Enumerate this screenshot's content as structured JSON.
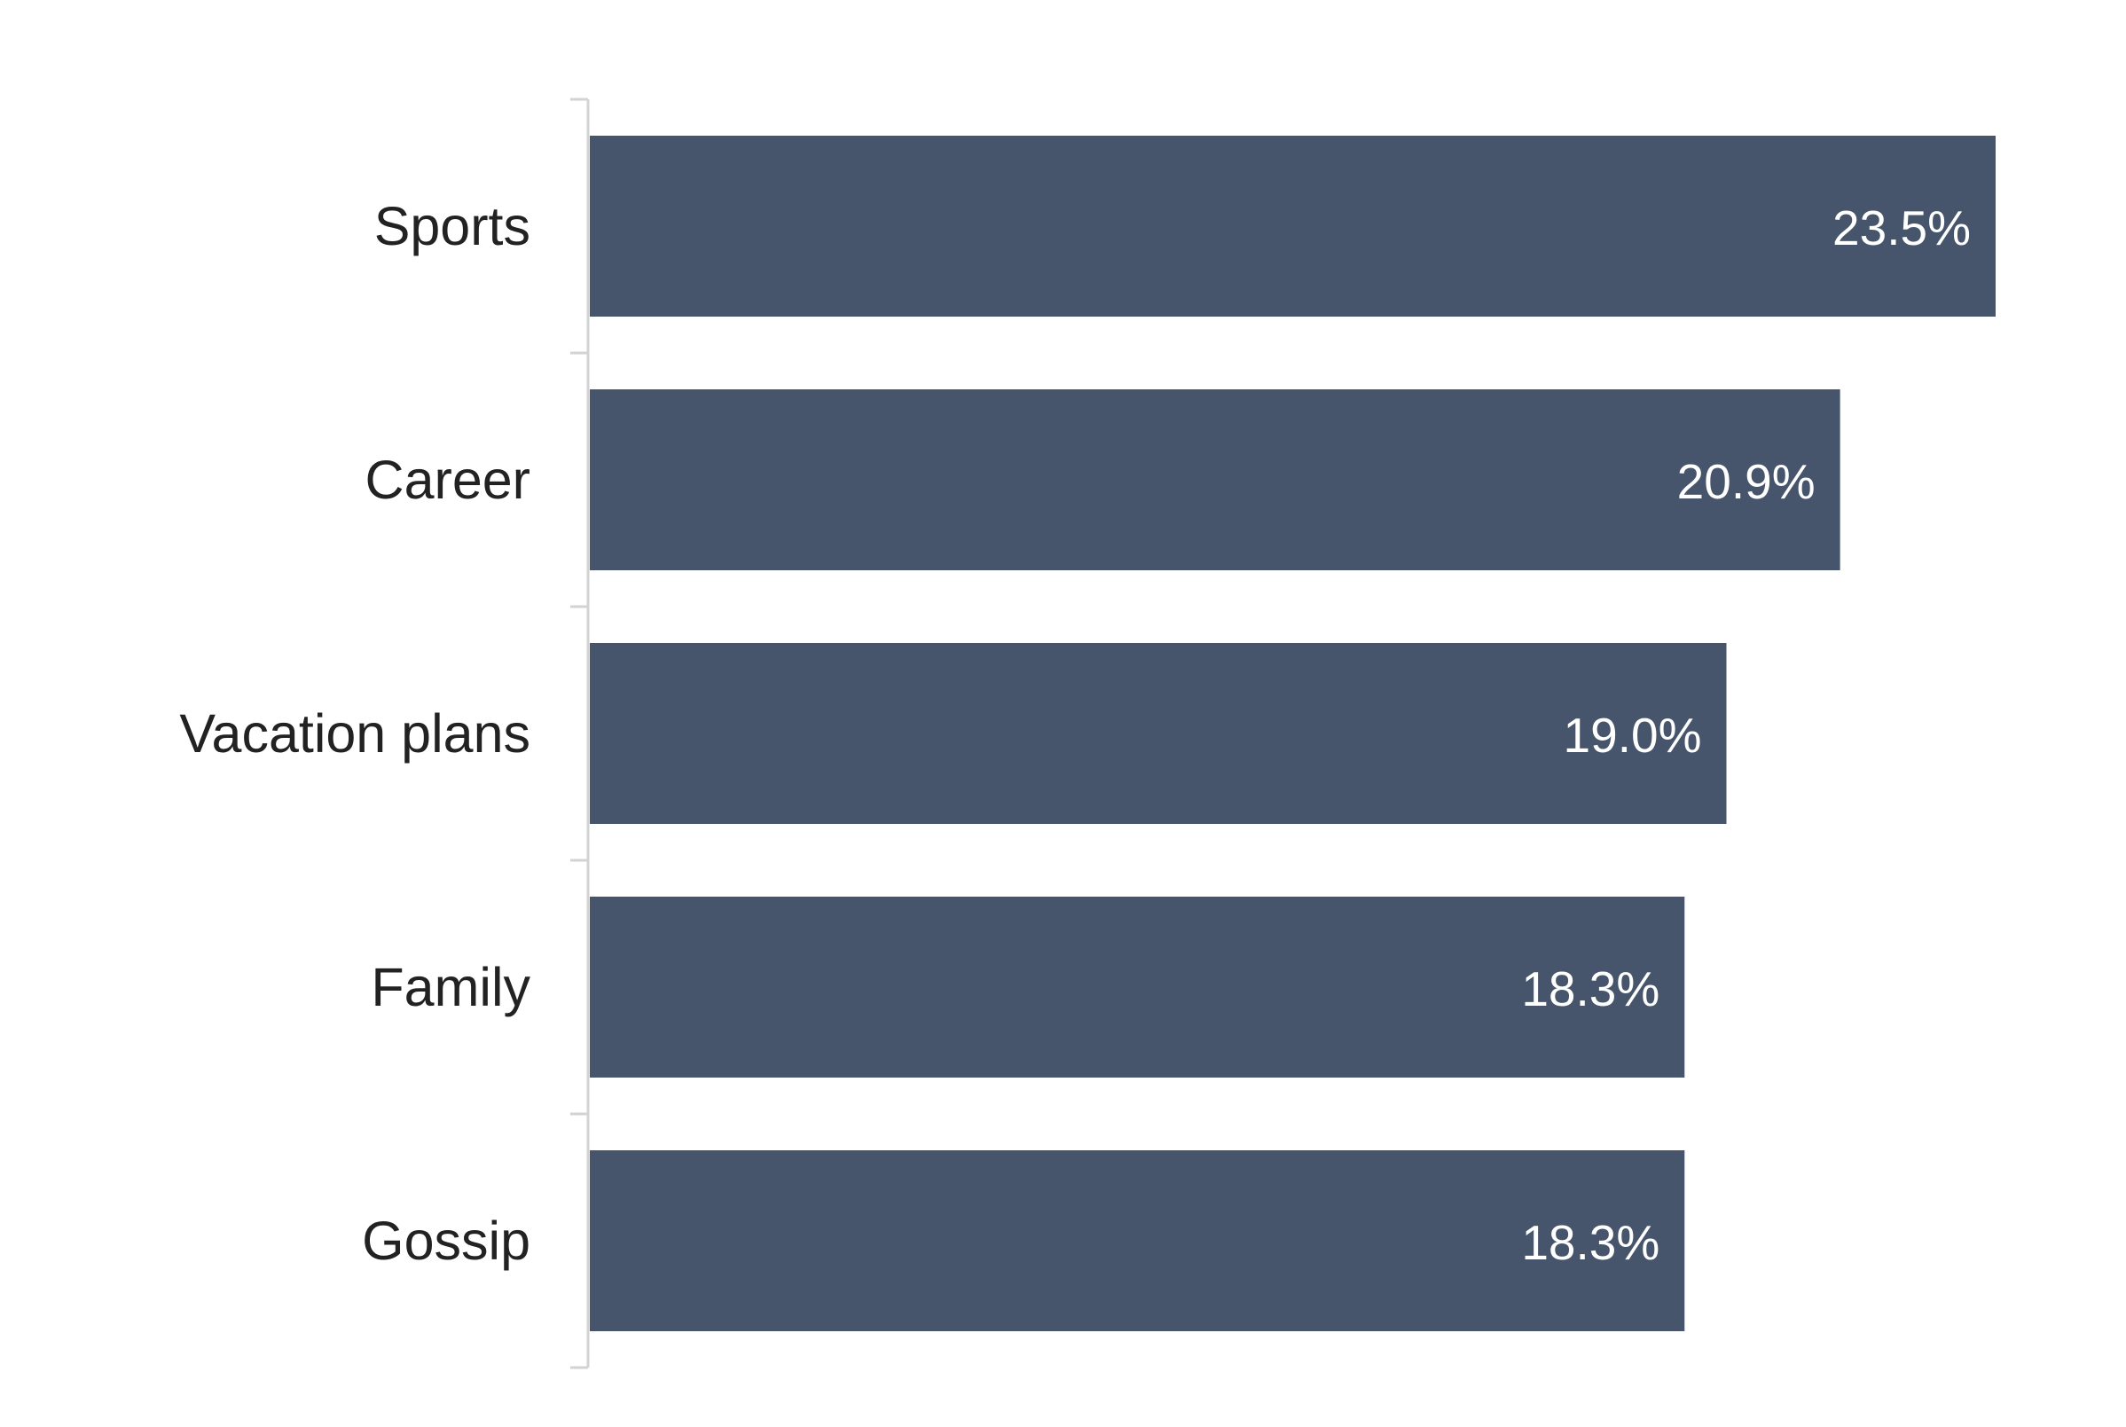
{
  "colors": {
    "bar": "#46556c",
    "axis": "#d3d3d3",
    "category_text": "#222222",
    "value_text": "#ffffff",
    "background": "#ffffff"
  },
  "chart_data": {
    "type": "bar",
    "orientation": "horizontal",
    "title": "",
    "xlabel": "",
    "ylabel": "",
    "categories": [
      "Sports",
      "Career",
      "Vacation plans",
      "Family",
      "Gossip"
    ],
    "values": [
      23.5,
      20.9,
      19.0,
      18.3,
      18.3
    ],
    "value_labels": [
      "23.5%",
      "20.9%",
      "19.0%",
      "18.3%",
      "18.3%"
    ],
    "unit": "%",
    "xlim": [
      0,
      23.5
    ],
    "grid": false,
    "legend": "none",
    "data_label_position": "inside-end"
  }
}
